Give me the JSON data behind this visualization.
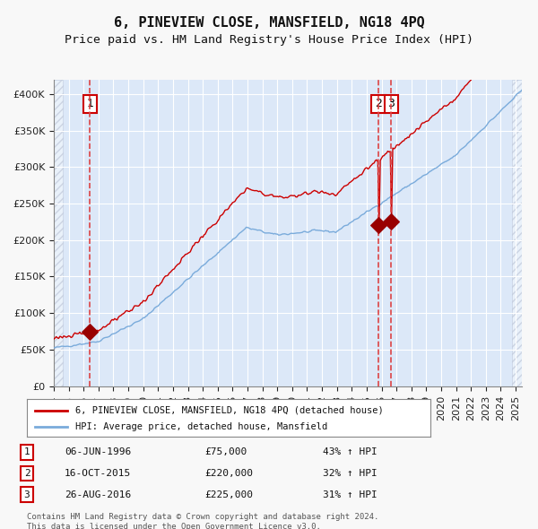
{
  "title": "6, PINEVIEW CLOSE, MANSFIELD, NG18 4PQ",
  "subtitle": "Price paid vs. HM Land Registry's House Price Index (HPI)",
  "legend_line1": "6, PINEVIEW CLOSE, MANSFIELD, NG18 4PQ (detached house)",
  "legend_line2": "HPI: Average price, detached house, Mansfield",
  "sale1_date": "06-JUN-1996",
  "sale1_price": 75000,
  "sale1_label": "1",
  "sale1_pct": "43% ↑ HPI",
  "sale2_date": "16-OCT-2015",
  "sale2_price": 220000,
  "sale2_label": "2",
  "sale2_pct": "32% ↑ HPI",
  "sale3_date": "26-AUG-2016",
  "sale3_price": 225000,
  "sale3_label": "3",
  "sale3_pct": "31% ↑ HPI",
  "footer1": "Contains HM Land Registry data © Crown copyright and database right 2024.",
  "footer2": "This data is licensed under the Open Government Licence v3.0.",
  "hatch_color": "#c8d0e0",
  "bg_color": "#dce8f8",
  "plot_bg": "#dce8f8",
  "grid_color": "#ffffff",
  "red_line_color": "#cc0000",
  "blue_line_color": "#7aabdb",
  "dot_color": "#990000",
  "vline_color": "#dd4444",
  "box_color": "#cc0000",
  "ylim_max": 420000,
  "ylim_min": 0
}
